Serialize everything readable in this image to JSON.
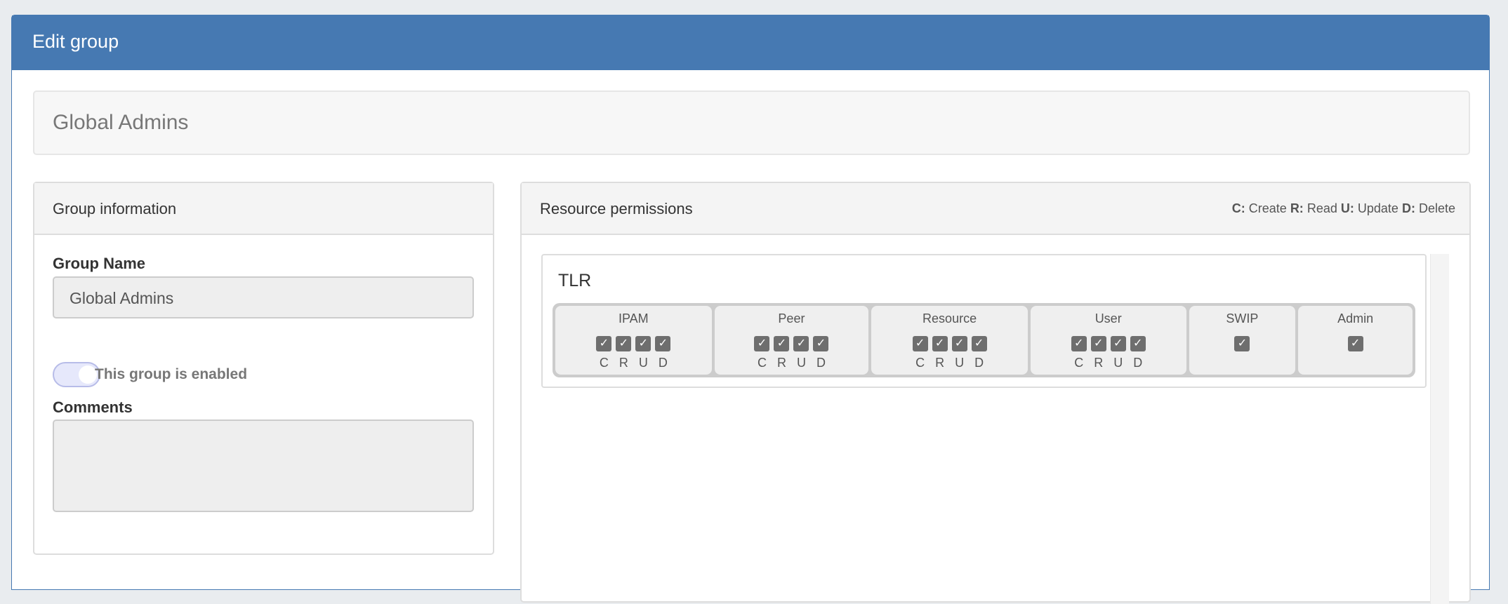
{
  "header": {
    "title": "Edit group"
  },
  "group_title": "Global Admins",
  "info": {
    "panel_title": "Group information",
    "name_label": "Group Name",
    "name_value": "Global Admins",
    "enabled_label": "This group is enabled",
    "enabled": true,
    "comments_label": "Comments",
    "comments_value": ""
  },
  "permissions": {
    "panel_title": "Resource permissions",
    "legend": [
      {
        "key": "C:",
        "text": "Create"
      },
      {
        "key": "R:",
        "text": "Read"
      },
      {
        "key": "U:",
        "text": "Update"
      },
      {
        "key": "D:",
        "text": "Delete"
      }
    ],
    "section": "TLR",
    "check_glyph": "✓",
    "groups": [
      {
        "name": "IPAM",
        "letters": [
          "C",
          "R",
          "U",
          "D"
        ]
      },
      {
        "name": "Peer",
        "letters": [
          "C",
          "R",
          "U",
          "D"
        ]
      },
      {
        "name": "Resource",
        "letters": [
          "C",
          "R",
          "U",
          "D"
        ]
      },
      {
        "name": "User",
        "letters": [
          "C",
          "R",
          "U",
          "D"
        ]
      },
      {
        "name": "SWIP",
        "letters": []
      },
      {
        "name": "Admin",
        "letters": []
      }
    ]
  }
}
